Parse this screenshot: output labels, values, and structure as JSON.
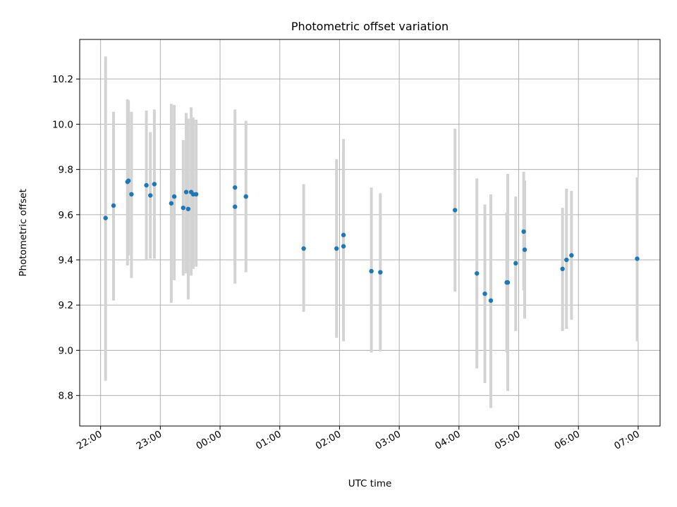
{
  "chart_data": {
    "type": "scatter",
    "title": "Photometric offset variation",
    "xlabel": "UTC time",
    "ylabel": "Photometric offset",
    "x_start": "2000-01-01T21:39",
    "x_end": "2000-01-02T07:22",
    "ylim": [
      8.665,
      10.375
    ],
    "x_ticks": [
      {
        "time": "2000-01-01T22:00",
        "label": "22:00"
      },
      {
        "time": "2000-01-01T23:00",
        "label": "23:00"
      },
      {
        "time": "2000-01-02T00:00",
        "label": "00:00"
      },
      {
        "time": "2000-01-02T01:00",
        "label": "01:00"
      },
      {
        "time": "2000-01-02T02:00",
        "label": "02:00"
      },
      {
        "time": "2000-01-02T03:00",
        "label": "03:00"
      },
      {
        "time": "2000-01-02T04:00",
        "label": "04:00"
      },
      {
        "time": "2000-01-02T05:00",
        "label": "05:00"
      },
      {
        "time": "2000-01-02T06:00",
        "label": "06:00"
      },
      {
        "time": "2000-01-02T07:00",
        "label": "07:00"
      }
    ],
    "y_ticks": [
      8.8,
      9.0,
      9.2,
      9.4,
      9.6,
      9.8,
      10.0,
      10.2
    ],
    "grid": true,
    "point_color": "#1f77b4",
    "errorbar_color": "#d3d3d3",
    "points": [
      {
        "t": "2000-01-01T22:05",
        "y": 9.585,
        "lo": 8.865,
        "hi": 10.3
      },
      {
        "t": "2000-01-01T22:13",
        "y": 9.64,
        "lo": 9.22,
        "hi": 10.055
      },
      {
        "t": "2000-01-01T22:27",
        "y": 9.745,
        "lo": 9.375,
        "hi": 10.11
      },
      {
        "t": "2000-01-01T22:28",
        "y": 9.75,
        "lo": 9.42,
        "hi": 10.105
      },
      {
        "t": "2000-01-01T22:31",
        "y": 9.69,
        "lo": 9.32,
        "hi": 10.055
      },
      {
        "t": "2000-01-01T22:46",
        "y": 9.73,
        "lo": 9.4,
        "hi": 10.06
      },
      {
        "t": "2000-01-01T22:50",
        "y": 9.685,
        "lo": 9.405,
        "hi": 9.965
      },
      {
        "t": "2000-01-01T22:54",
        "y": 9.735,
        "lo": 9.405,
        "hi": 10.065
      },
      {
        "t": "2000-01-01T23:11",
        "y": 9.65,
        "lo": 9.21,
        "hi": 10.09
      },
      {
        "t": "2000-01-01T23:14",
        "y": 9.68,
        "lo": 9.31,
        "hi": 10.085
      },
      {
        "t": "2000-01-01T23:23",
        "y": 9.63,
        "lo": 9.33,
        "hi": 9.93
      },
      {
        "t": "2000-01-01T23:26",
        "y": 9.7,
        "lo": 9.34,
        "hi": 10.05
      },
      {
        "t": "2000-01-01T23:28",
        "y": 9.625,
        "lo": 9.225,
        "hi": 10.025
      },
      {
        "t": "2000-01-01T23:31",
        "y": 9.7,
        "lo": 9.33,
        "hi": 10.075
      },
      {
        "t": "2000-01-01T23:33",
        "y": 9.69,
        "lo": 9.36,
        "hi": 10.03
      },
      {
        "t": "2000-01-01T23:36",
        "y": 9.69,
        "lo": 9.37,
        "hi": 10.02
      },
      {
        "t": "2000-01-02T00:15",
        "y": 9.72,
        "lo": 9.375,
        "hi": 10.065
      },
      {
        "t": "2000-01-02T00:15",
        "y": 9.635,
        "lo": 9.295,
        "hi": 9.975
      },
      {
        "t": "2000-01-02T00:26",
        "y": 9.68,
        "lo": 9.345,
        "hi": 10.015
      },
      {
        "t": "2000-01-02T01:24",
        "y": 9.45,
        "lo": 9.17,
        "hi": 9.735
      },
      {
        "t": "2000-01-02T01:57",
        "y": 9.45,
        "lo": 9.055,
        "hi": 9.845
      },
      {
        "t": "2000-01-02T02:04",
        "y": 9.51,
        "lo": 9.09,
        "hi": 9.935
      },
      {
        "t": "2000-01-02T02:04",
        "y": 9.46,
        "lo": 9.04,
        "hi": 9.885
      },
      {
        "t": "2000-01-02T02:32",
        "y": 9.35,
        "lo": 8.99,
        "hi": 9.72
      },
      {
        "t": "2000-01-02T02:41",
        "y": 9.345,
        "lo": 8.995,
        "hi": 9.695
      },
      {
        "t": "2000-01-02T03:56",
        "y": 9.62,
        "lo": 9.26,
        "hi": 9.98
      },
      {
        "t": "2000-01-02T04:18",
        "y": 9.34,
        "lo": 8.92,
        "hi": 9.76
      },
      {
        "t": "2000-01-02T04:26",
        "y": 9.25,
        "lo": 8.855,
        "hi": 9.645
      },
      {
        "t": "2000-01-02T04:32",
        "y": 9.22,
        "lo": 8.745,
        "hi": 9.69
      },
      {
        "t": "2000-01-02T04:48",
        "y": 9.3,
        "lo": 8.99,
        "hi": 9.61
      },
      {
        "t": "2000-01-02T04:49",
        "y": 9.3,
        "lo": 8.82,
        "hi": 9.78
      },
      {
        "t": "2000-01-02T04:57",
        "y": 9.385,
        "lo": 9.085,
        "hi": 9.68
      },
      {
        "t": "2000-01-02T05:05",
        "y": 9.525,
        "lo": 9.265,
        "hi": 9.79
      },
      {
        "t": "2000-01-02T05:06",
        "y": 9.445,
        "lo": 9.14,
        "hi": 9.75
      },
      {
        "t": "2000-01-02T05:44",
        "y": 9.36,
        "lo": 9.085,
        "hi": 9.63
      },
      {
        "t": "2000-01-02T05:48",
        "y": 9.4,
        "lo": 9.095,
        "hi": 9.715
      },
      {
        "t": "2000-01-02T05:53",
        "y": 9.42,
        "lo": 9.135,
        "hi": 9.705
      },
      {
        "t": "2000-01-02T06:59",
        "y": 9.405,
        "lo": 9.04,
        "hi": 9.765
      }
    ]
  }
}
